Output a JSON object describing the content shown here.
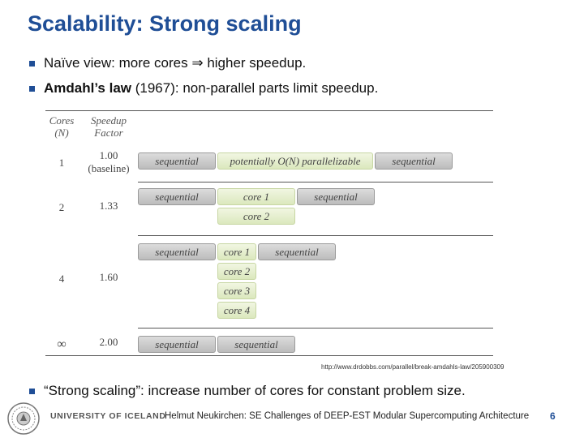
{
  "slide": {
    "title": "Scalability: Strong scaling",
    "bullets": [
      {
        "text_before": "Naïve view: more cores ",
        "arrow": "⇒",
        "text_after": " higher speedup."
      },
      {
        "bold": "Amdahl’s law",
        "text": " (1967): non-parallel parts limit speedup."
      }
    ],
    "bullet3": "“Strong scaling”: increase number of cores for constant problem size.",
    "credit": "http://www.drdobbs.com/parallel/break-amdahls-law/205900309"
  },
  "figure": {
    "header_cores": [
      "Cores",
      "(N)"
    ],
    "header_speedup": [
      "Speedup",
      "Factor"
    ],
    "rows": [
      {
        "cores": "1",
        "speedup": "1.00",
        "speedup_note": "(baseline)",
        "boxes": [
          "sequential",
          "potentially O(N) parallelizable",
          "sequential"
        ]
      },
      {
        "cores": "2",
        "speedup": "1.33",
        "boxes": [
          "sequential",
          "core 1",
          "sequential",
          "core 2"
        ]
      },
      {
        "cores": "4",
        "speedup": "1.60",
        "boxes": [
          "sequential",
          "core 1",
          "sequential",
          "core 2",
          "core 3",
          "core 4"
        ]
      },
      {
        "cores": "∞",
        "speedup": "2.00",
        "boxes": [
          "sequential",
          "sequential"
        ]
      }
    ]
  },
  "footer": {
    "university": "UNIVERSITY OF ICELAND",
    "text": "Helmut Neukirchen: SE Challenges of DEEP-EST Modular Supercomputing Architecture",
    "page": "6"
  },
  "colors": {
    "title": "#1f4e96",
    "sequential_box": "#c8c8c8",
    "parallel_box": "#e4eecb"
  }
}
